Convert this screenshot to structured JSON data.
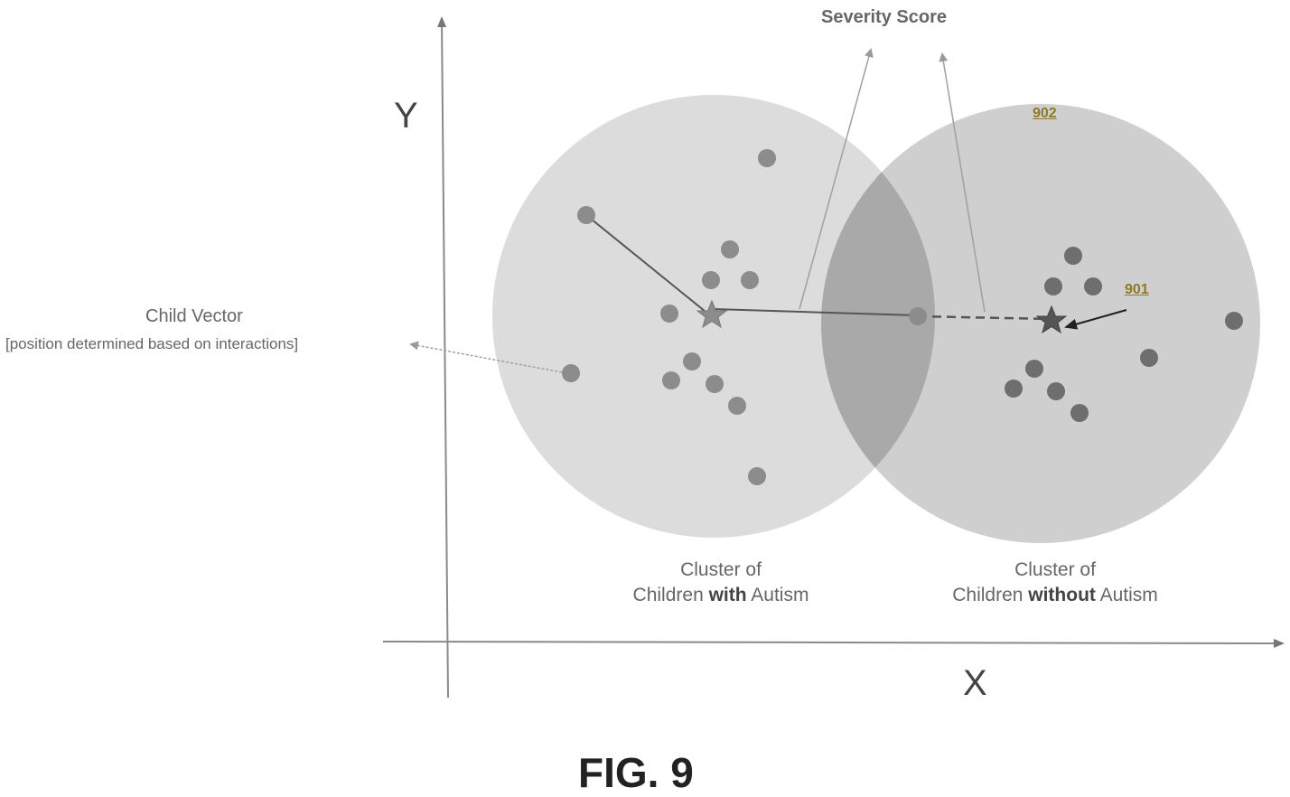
{
  "labels": {
    "y_axis": "Y",
    "x_axis": "X",
    "severity_score": "Severity Score",
    "child_vector_title": "Child Vector",
    "child_vector_sub": "[position determined based on interactions]",
    "cluster_with_line1": "Cluster of",
    "cluster_with_pre": "Children ",
    "cluster_with_bold": "with",
    "cluster_with_post": " Autism",
    "cluster_without_line1": "Cluster of",
    "cluster_without_pre": "Children ",
    "cluster_without_bold": "without",
    "cluster_without_post": " Autism",
    "ref_901": "901",
    "ref_902": "902",
    "figure_caption": "FIG. 9"
  },
  "colors": {
    "cluster_with_fill": "#dcdcdc",
    "cluster_without_fill": "#cfcfcf",
    "overlap_fill": "#a9a9a9",
    "point_with": "#8c8c8c",
    "point_without": "#6e6e6e",
    "axis": "#888888",
    "ref_label": "#8a7a2a"
  },
  "icons": {
    "centroid_with": "star-icon",
    "centroid_without": "star-icon"
  }
}
